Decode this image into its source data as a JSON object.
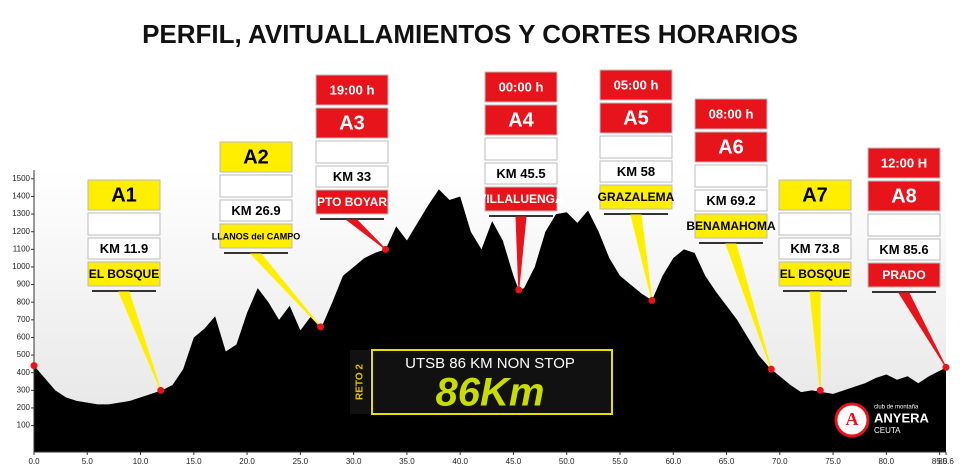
{
  "chart_data": {
    "type": "area",
    "title": "PERFIL, AVITUALLAMIENTOS Y CORTES HORARIOS",
    "color": "#000000",
    "x": [
      0,
      1,
      2,
      3,
      4,
      5,
      6,
      7,
      8,
      9,
      10,
      11,
      12,
      13,
      14,
      15,
      16,
      17,
      18,
      19,
      20,
      21,
      22,
      23,
      24,
      25,
      26,
      27,
      28,
      29,
      30,
      31,
      32,
      33,
      34,
      35,
      36,
      37,
      38,
      39,
      40,
      41,
      42,
      43,
      44,
      45,
      45.5,
      46,
      47,
      48,
      49,
      50,
      51,
      52,
      53,
      54,
      55,
      56,
      57,
      58,
      59,
      60,
      61,
      62,
      63,
      64,
      65,
      66,
      67,
      68,
      69,
      70,
      71,
      72,
      73,
      74,
      75,
      76,
      77,
      78,
      79,
      80,
      81,
      82,
      83,
      84,
      85,
      85.6
    ],
    "values": [
      440,
      370,
      300,
      260,
      240,
      230,
      220,
      220,
      230,
      240,
      260,
      280,
      300,
      330,
      420,
      600,
      650,
      720,
      520,
      560,
      740,
      880,
      800,
      700,
      780,
      640,
      720,
      660,
      800,
      950,
      1000,
      1050,
      1080,
      1100,
      1230,
      1150,
      1250,
      1350,
      1440,
      1380,
      1400,
      1200,
      1100,
      1260,
      1150,
      950,
      870,
      880,
      1000,
      1200,
      1300,
      1310,
      1250,
      1320,
      1200,
      1050,
      950,
      900,
      850,
      810,
      950,
      1050,
      1100,
      1080,
      950,
      860,
      780,
      700,
      600,
      500,
      430,
      380,
      330,
      290,
      300,
      290,
      280,
      300,
      320,
      340,
      370,
      390,
      360,
      380,
      340,
      380,
      410,
      430
    ],
    "xlim": [
      0,
      85.6
    ],
    "ylim": [
      -50,
      1550
    ],
    "xticks": [
      {
        "value": 0,
        "label": "0.0"
      },
      {
        "value": 5,
        "label": "5.0"
      },
      {
        "value": 10,
        "label": "10.0"
      },
      {
        "value": 15,
        "label": "15.0"
      },
      {
        "value": 20,
        "label": "20.0"
      },
      {
        "value": 25,
        "label": "25.0"
      },
      {
        "value": 30,
        "label": "30.0"
      },
      {
        "value": 35,
        "label": "35.0"
      },
      {
        "value": 40,
        "label": "40.0"
      },
      {
        "value": 45,
        "label": "45.0"
      },
      {
        "value": 50,
        "label": "50.0"
      },
      {
        "value": 55,
        "label": "55.0"
      },
      {
        "value": 60,
        "label": "60.0"
      },
      {
        "value": 65,
        "label": "65.0"
      },
      {
        "value": 70,
        "label": "70.0"
      },
      {
        "value": 75,
        "label": "75.0"
      },
      {
        "value": 80,
        "label": "80.0"
      },
      {
        "value": 85,
        "label": "85.0"
      },
      85.6
    ],
    "yticks": [
      100,
      200,
      300,
      400,
      500,
      600,
      700,
      800,
      900,
      1000,
      1100,
      1200,
      1300,
      1400,
      1500
    ],
    "annotations": [
      {
        "label": "A1",
        "km_label": "KM 11.9",
        "place": "EL BOSQUE",
        "x": 11.9,
        "y": 300,
        "label_color": "#ffee00",
        "place_color": "#ffee00"
      },
      {
        "label": "A2",
        "km_label": "KM 26.9",
        "place": "LLANOS del CAMPO",
        "x": 26.9,
        "y": 660,
        "label_color": "#ffee00",
        "place_color": "#ffee00"
      },
      {
        "time": "19:00 h",
        "label": "A3",
        "km_label": "KM 33",
        "place": "PTO BOYAR",
        "x": 33,
        "y": 1100,
        "label_color": "#e8141c",
        "place_color": "#e8141c"
      },
      {
        "time": "00:00 h",
        "label": "A4",
        "km_label": "KM 45.5",
        "place": "VILLALUENGA",
        "x": 45.5,
        "y": 870,
        "label_color": "#e8141c",
        "place_color": "#e8141c"
      },
      {
        "time": "05:00 h",
        "label": "A5",
        "km_label": "KM 58",
        "place": "GRAZALEMA",
        "x": 58,
        "y": 810,
        "label_color": "#e8141c",
        "place_color": "#ffee00"
      },
      {
        "time": "08:00 h",
        "label": "A6",
        "km_label": "KM 69.2",
        "place": "BENAMAHOMA",
        "x": 69.2,
        "y": 420,
        "label_color": "#e8141c",
        "place_color": "#ffee00"
      },
      {
        "label": "A7",
        "km_label": "KM 73.8",
        "place": "EL BOSQUE",
        "x": 73.8,
        "y": 300,
        "label_color": "#ffee00",
        "place_color": "#ffee00"
      },
      {
        "time": "12:00 H",
        "label": "A8",
        "km_label": "KM 85.6",
        "place": "PRADO",
        "x": 85.6,
        "y": 430,
        "label_color": "#e8141c",
        "place_color": "#e8141c"
      }
    ],
    "badge": {
      "caption": "UTSB 86 KM NON STOP",
      "big": "86Km",
      "side": "RETO 2"
    },
    "club": {
      "small": "club de montaña",
      "name": "ANYERA",
      "city": "CEUTA"
    }
  }
}
